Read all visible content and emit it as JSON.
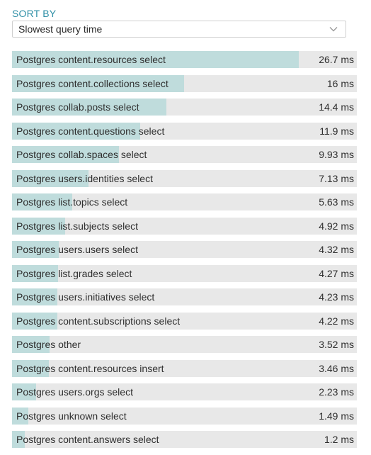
{
  "sort": {
    "label": "SORT BY",
    "selected": "Slowest query time"
  },
  "queries": [
    {
      "label": "Postgres content.resources select",
      "value_text": "26.7 ms",
      "value": 26.7
    },
    {
      "label": "Postgres content.collections select",
      "value_text": "16 ms",
      "value": 16
    },
    {
      "label": "Postgres collab.posts select",
      "value_text": "14.4 ms",
      "value": 14.4
    },
    {
      "label": "Postgres content.questions select",
      "value_text": "11.9 ms",
      "value": 11.9
    },
    {
      "label": "Postgres collab.spaces select",
      "value_text": "9.93 ms",
      "value": 9.93
    },
    {
      "label": "Postgres users.identities select",
      "value_text": "7.13 ms",
      "value": 7.13
    },
    {
      "label": "Postgres list.topics select",
      "value_text": "5.63 ms",
      "value": 5.63
    },
    {
      "label": "Postgres list.subjects select",
      "value_text": "4.92 ms",
      "value": 4.92
    },
    {
      "label": "Postgres users.users select",
      "value_text": "4.32 ms",
      "value": 4.32
    },
    {
      "label": "Postgres list.grades select",
      "value_text": "4.27 ms",
      "value": 4.27
    },
    {
      "label": "Postgres users.initiatives select",
      "value_text": "4.23 ms",
      "value": 4.23
    },
    {
      "label": "Postgres content.subscriptions select",
      "value_text": "4.22 ms",
      "value": 4.22
    },
    {
      "label": "Postgres other",
      "value_text": "3.52 ms",
      "value": 3.52
    },
    {
      "label": "Postgres content.resources insert",
      "value_text": "3.46 ms",
      "value": 3.46
    },
    {
      "label": "Postgres users.orgs select",
      "value_text": "2.23 ms",
      "value": 2.23
    },
    {
      "label": "Postgres unknown select",
      "value_text": "1.49 ms",
      "value": 1.49
    },
    {
      "label": "Postgres content.answers select",
      "value_text": "1.2 ms",
      "value": 1.2
    }
  ],
  "colors": {
    "accent": "#2f8fa6",
    "bar_fill": "#bfdcdc",
    "bar_track": "#e8e8e8"
  },
  "icons": {
    "select_chevron": "chevron-down-icon"
  }
}
